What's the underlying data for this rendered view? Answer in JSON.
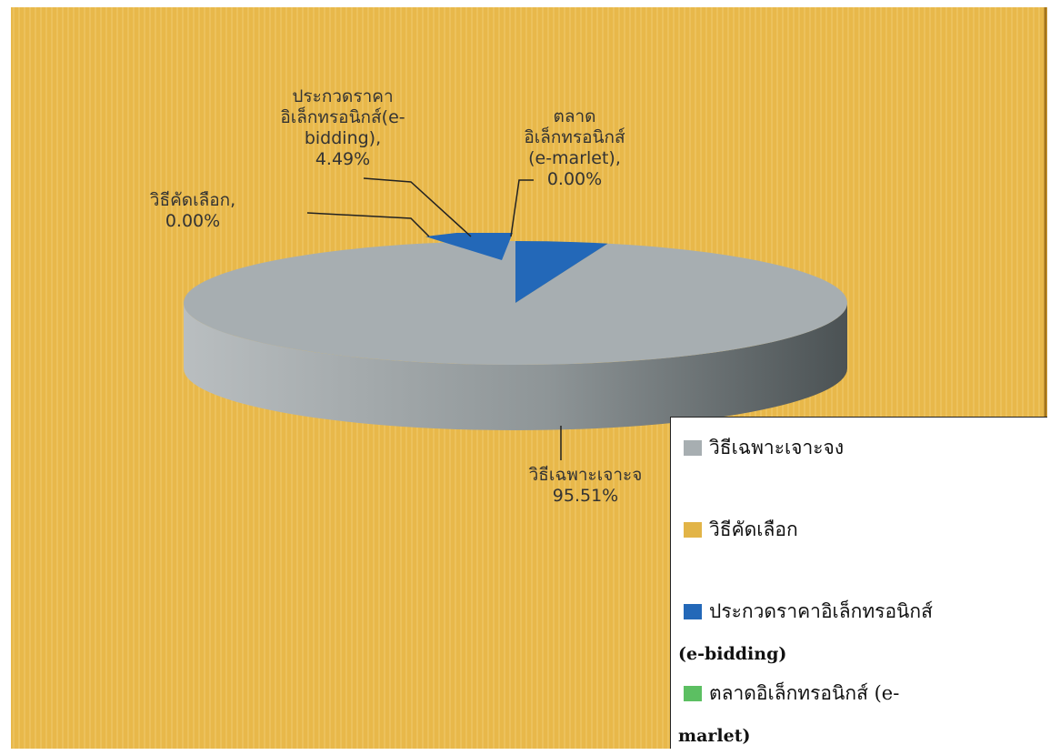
{
  "chart_data": {
    "type": "pie",
    "style": "3d",
    "background_color": "#e8b84a",
    "slices": [
      {
        "label": "วิธีเฉพาะเจาะจง",
        "value": 95.51,
        "callout": "วิธีเฉพาะเจาะจ",
        "value_label": "95.51%",
        "color": "#a7aeb1"
      },
      {
        "label": "วิธีคัดเลือก",
        "value": 0.0,
        "callout": "วิธีคัดเลือก,",
        "value_label": "0.00%",
        "color": "#e2b447"
      },
      {
        "label": "ประกวดราคาอิเล็กทรอนิกส์ (e-bidding)",
        "value": 4.49,
        "callout": [
          "ประกวดราคา",
          "อิเล็กทรอนิกส์(e-",
          "bidding),"
        ],
        "value_label": "4.49%",
        "color": "#2368b8"
      },
      {
        "label": "ตลาดอิเล็กทรอนิกส์ (e-marlet)",
        "value": 0.0,
        "callout": [
          "ตลาด",
          "อิเล็กทรอนิกส์",
          "(e-marlet),"
        ],
        "value_label": "0.00%",
        "color": "#5cbf62"
      }
    ],
    "legend": {
      "position": "bottom-right",
      "items": [
        {
          "text": "วิธีเฉพาะเจาะจง",
          "text2": "",
          "color": "#a7aeb1"
        },
        {
          "text": "วิธีคัดเลือก",
          "text2": "",
          "color": "#e2b447"
        },
        {
          "text": "ประกวดราคาอิเล็กทรอนิกส์",
          "text2": "(e-bidding)",
          "color": "#2368b8"
        },
        {
          "text": "ตลาดอิเล็กทรอนิกส์ (e-",
          "text2": "marlet)",
          "color": "#5cbf62"
        }
      ]
    }
  }
}
